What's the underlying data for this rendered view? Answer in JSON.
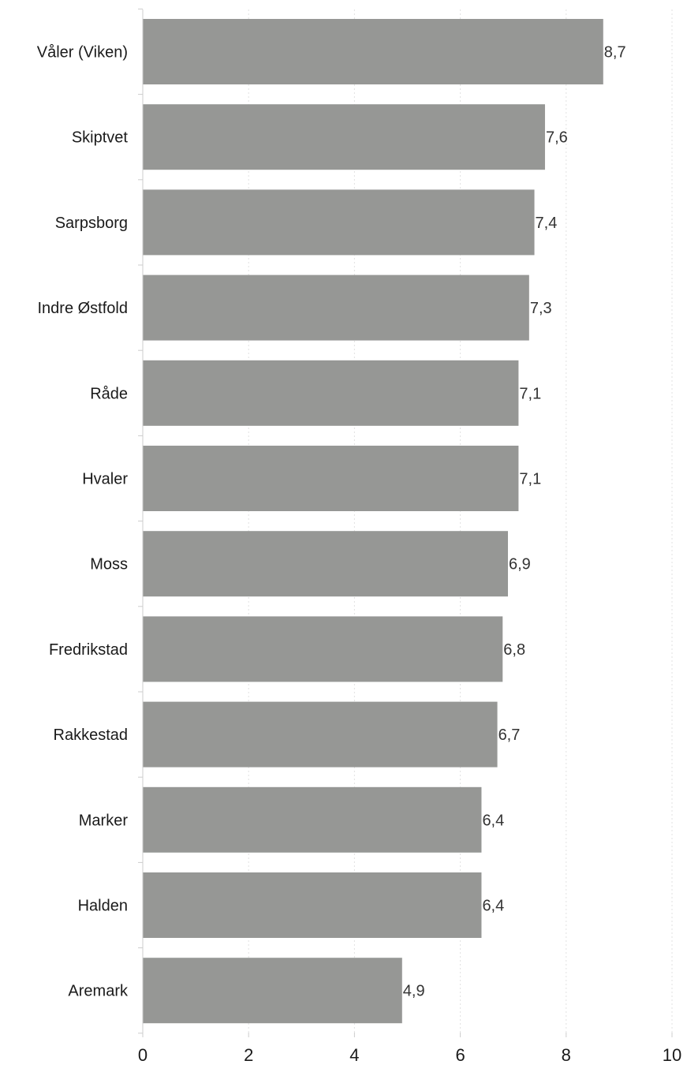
{
  "chart_data": {
    "type": "bar",
    "orientation": "horizontal",
    "categories": [
      "Våler (Viken)",
      "Skiptvet",
      "Sarpsborg",
      "Indre Østfold",
      "Råde",
      "Hvaler",
      "Moss",
      "Fredrikstad",
      "Rakkestad",
      "Marker",
      "Halden",
      "Aremark"
    ],
    "values": [
      8.7,
      7.6,
      7.4,
      7.3,
      7.1,
      7.1,
      6.9,
      6.8,
      6.7,
      6.4,
      6.4,
      4.9
    ],
    "value_labels": [
      "8,7",
      "7,6",
      "7,4",
      "7,3",
      "7,1",
      "7,1",
      "6,9",
      "6,8",
      "6,7",
      "6,4",
      "6,4",
      "4,9"
    ],
    "xlim": [
      0,
      10
    ],
    "x_ticks": [
      0,
      2,
      4,
      6,
      8,
      10
    ],
    "title": "",
    "xlabel": "",
    "ylabel": "",
    "grid": "vertical dotted",
    "bar_color": "#969795",
    "axis_color": "#cccccc",
    "gridline_color": "#e2e2e2",
    "text_color": "#1a1a1a"
  }
}
